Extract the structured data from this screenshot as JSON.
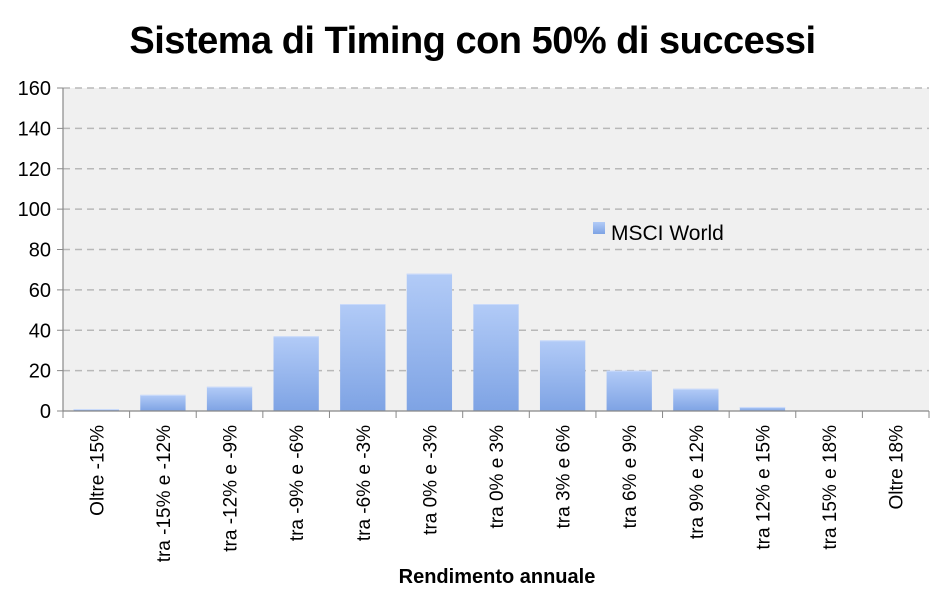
{
  "chart_data": {
    "type": "bar",
    "title": "Sistema di Timing con 50% di successi",
    "xlabel": "Rendimento annuale",
    "ylabel": "",
    "ylim": [
      0,
      160
    ],
    "yticks": [
      0,
      20,
      40,
      60,
      80,
      100,
      120,
      140,
      160
    ],
    "grid": true,
    "legend_position": "right",
    "categories": [
      "Oltre -15%",
      "tra -15% e -12%",
      "tra -12% e -9%",
      "tra -9% e -6%",
      "tra -6% e -3%",
      "tra 0% e -3%",
      "tra 0% e 3%",
      "tra 3% e 6%",
      "tra 6% e 9%",
      "tra 9% e 12%",
      "tra 12% e 15%",
      "tra 15% e 18%",
      "Oltre 18%"
    ],
    "series": [
      {
        "name": "MSCI World",
        "color": "#8eb0ec",
        "values": [
          1,
          8,
          12,
          37,
          53,
          68,
          53,
          35,
          20,
          11,
          2,
          0,
          0
        ]
      }
    ]
  }
}
